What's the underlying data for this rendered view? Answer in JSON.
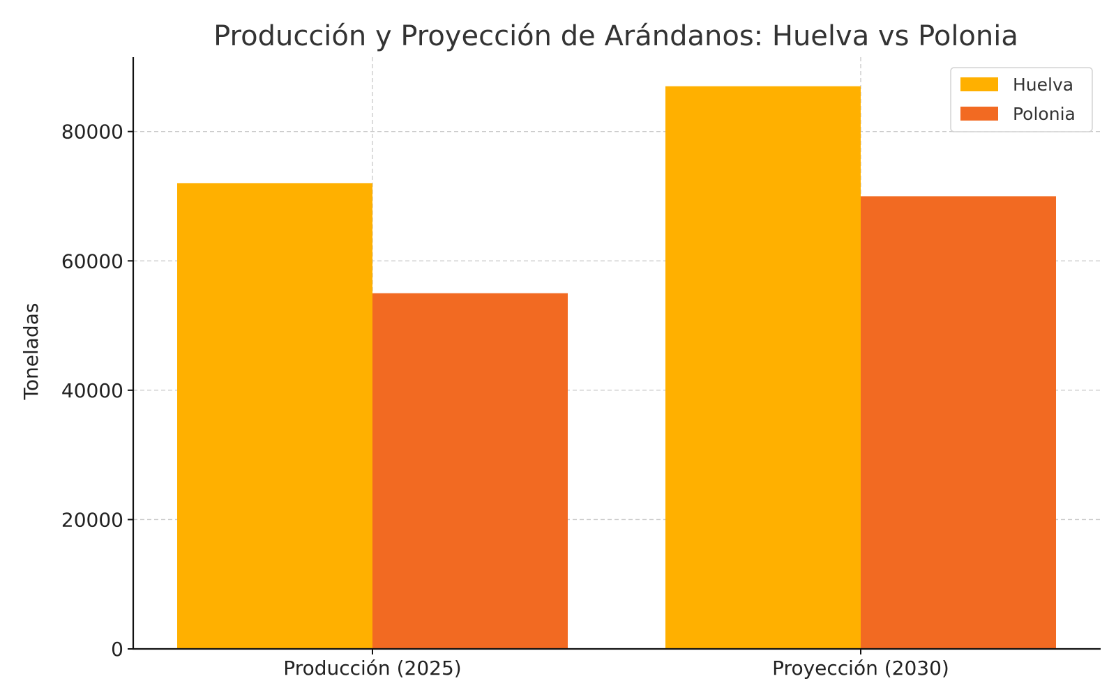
{
  "chart_data": {
    "type": "bar",
    "title": "Producción y Proyección de Arándanos: Huelva vs Polonia",
    "xlabel": "",
    "ylabel": "Toneladas",
    "categories": [
      "Producción (2025)",
      "Proyección (2030)"
    ],
    "series": [
      {
        "name": "Huelva",
        "color": "#FFB000",
        "values": [
          72000,
          87000
        ]
      },
      {
        "name": "Polonia",
        "color": "#F26A22",
        "values": [
          55000,
          70000
        ]
      }
    ],
    "ylim": [
      0,
      91500
    ],
    "yticks": [
      0,
      20000,
      40000,
      60000,
      80000
    ],
    "grid": true,
    "legend_position": "top-right"
  }
}
